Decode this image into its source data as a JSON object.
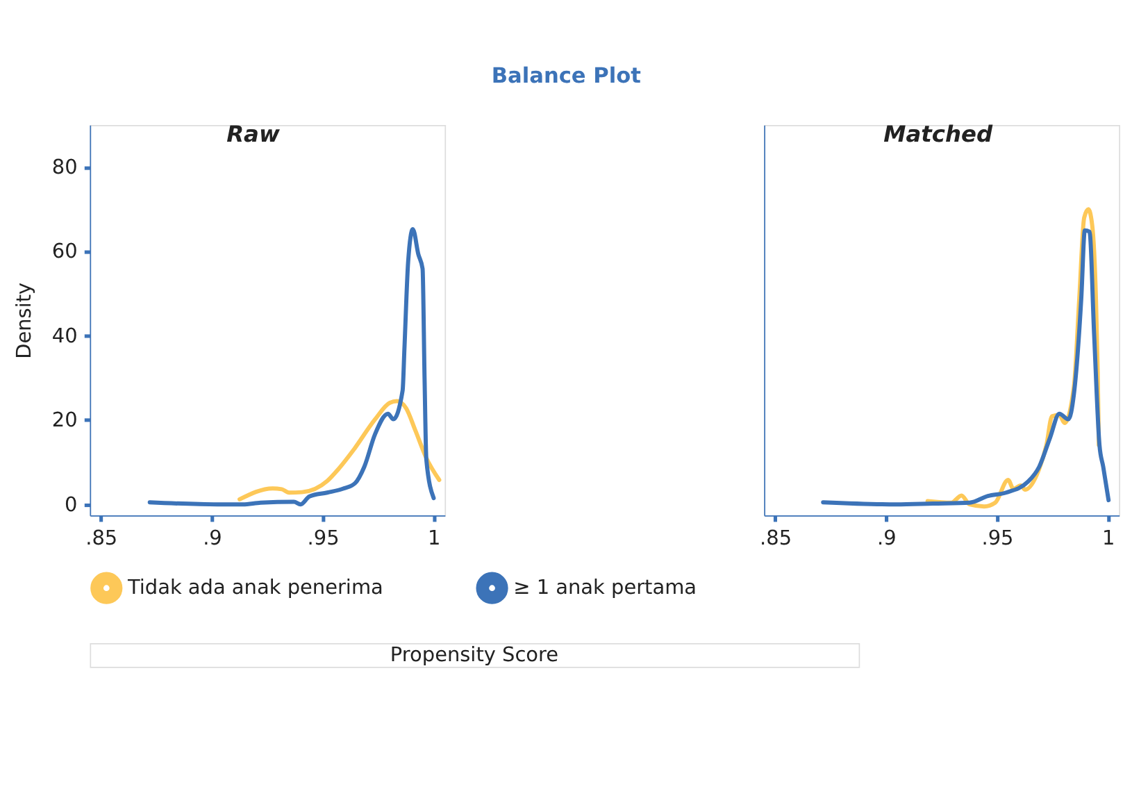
{
  "chart_data": [
    {
      "type": "line",
      "title": "Raw",
      "annotations": [
        "Balance Plot"
      ],
      "xlabel": "Propensity Score",
      "ylabel": "Density",
      "xlim": [
        0.845,
        1.005
      ],
      "ylim": [
        -2.6,
        90
      ],
      "xticks": [
        {
          "value": 0.85,
          "label": ".85"
        },
        {
          "value": 0.9,
          "label": ".9"
        },
        {
          "value": 0.95,
          "label": ".95"
        },
        1
      ],
      "yticks": [
        0,
        20,
        40,
        60,
        80
      ],
      "grid": false,
      "legend": "bottom",
      "marker": "none",
      "line_style": "solid",
      "series": [
        {
          "name": "Tidak ada anak penerima",
          "color": "#fdc858",
          "x": [
            0.9125,
            0.9274,
            0.9315,
            0.9348,
            0.9406,
            0.9521,
            0.9571,
            0.9637,
            0.9736,
            0.9802,
            0.9835,
            0.9876,
            0.9917,
            0.9967,
            1.0025
          ],
          "values": [
            1.2,
            3.8,
            3.6,
            2.8,
            2.9,
            5.6,
            8.4,
            12.8,
            20.2,
            24.1,
            24.5,
            22.8,
            17.6,
            11,
            5.8
          ]
        },
        {
          "name": "≥ 1 anak pertama",
          "color": "#3c73b8",
          "x": [
            0.872,
            0.9026,
            0.914,
            0.922,
            0.937,
            0.94,
            0.944,
            0.952,
            0.959,
            0.9645,
            0.9687,
            0.9736,
            0.9794,
            0.9818,
            0.986,
            0.9868,
            0.9885,
            0.9906,
            0.9931,
            0.995,
            0.9959,
            0.9967,
            1.0
          ],
          "values": [
            0.5,
            0,
            0,
            0.4,
            0.6,
            0,
            1.9,
            2.8,
            3.7,
            5,
            8.9,
            16.7,
            21.5,
            20.2,
            27,
            36.7,
            57.6,
            65.3,
            59.3,
            55.9,
            29.8,
            10.6,
            1.5
          ]
        }
      ]
    },
    {
      "type": "line",
      "title": "Matched",
      "xlim": [
        0.845,
        1.005
      ],
      "ylim": [
        -2.6,
        90
      ],
      "xticks": [
        {
          "value": 0.85,
          "label": ".85"
        },
        {
          "value": 0.9,
          "label": ".9"
        },
        {
          "value": 0.95,
          "label": ".95"
        },
        1
      ],
      "tick_labels": "x",
      "grid": false,
      "marker": "none",
      "line_style": "solid",
      "series": [
        {
          "color": "#fdc858",
          "x": [
            0.9187,
            0.9294,
            0.934,
            0.9376,
            0.9442,
            0.9492,
            0.955,
            0.9574,
            0.9607,
            0.9627,
            0.969,
            0.9723,
            0.9748,
            0.9781,
            0.9805,
            0.9847,
            0.9871,
            0.9893,
            0.9912,
            0.9929,
            0.9946,
            0.9954,
            0.9959
          ],
          "values": [
            0.8,
            0.4,
            2.1,
            0,
            -0.5,
            0.4,
            5.8,
            3.7,
            4.5,
            3.5,
            8.4,
            14.1,
            20.9,
            21.2,
            19.3,
            28,
            48.9,
            68,
            70,
            66.3,
            48.9,
            31.5,
            14.1
          ]
        },
        {
          "color": "#3c73b8",
          "x": [
            0.8716,
            0.9046,
            0.9211,
            0.9376,
            0.9459,
            0.9541,
            0.964,
            0.969,
            0.9739,
            0.9781,
            0.9822,
            0.9847,
            0.988,
            0.9896,
            0.9917,
            0.9938,
            0.9962,
            0.9979,
            1.0003
          ],
          "values": [
            0.5,
            0,
            0.2,
            0.4,
            2,
            2.8,
            5.4,
            8.9,
            15.8,
            21.5,
            20.2,
            26.3,
            48.9,
            65,
            64.7,
            40.2,
            14.1,
            8.9,
            1
          ]
        }
      ]
    }
  ]
}
